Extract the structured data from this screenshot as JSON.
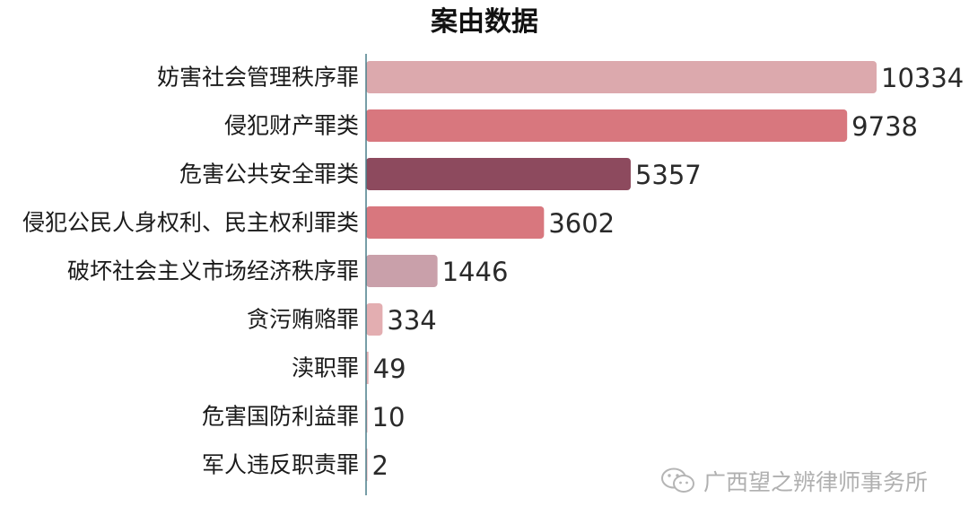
{
  "chart_data": {
    "type": "bar",
    "orientation": "horizontal",
    "title": "案由数据",
    "categories": [
      "妨害社会管理秩序罪",
      "侵犯财产罪类",
      "危害公共安全罪类",
      "侵犯公民人身权利、民主权利罪类",
      "破坏社会主义市场经济秩序罪",
      "贪污贿赂罪",
      "渎职罪",
      "危害国防利益罪",
      "军人违反职责罪"
    ],
    "values": [
      10334,
      9738,
      5357,
      3602,
      1446,
      334,
      49,
      10,
      2
    ],
    "colors": [
      "#dca9ad",
      "#d8777e",
      "#8d4a5e",
      "#d8777e",
      "#c9a0aa",
      "#e3aeb1",
      "#e3aeb1",
      "#e3aeb1",
      "#e3aeb1"
    ],
    "axis_color": "#4a7f8a",
    "grid": false,
    "legend": "none"
  },
  "watermark": {
    "icon": "wechat-icon",
    "text": "广西望之辨律师事务所"
  }
}
